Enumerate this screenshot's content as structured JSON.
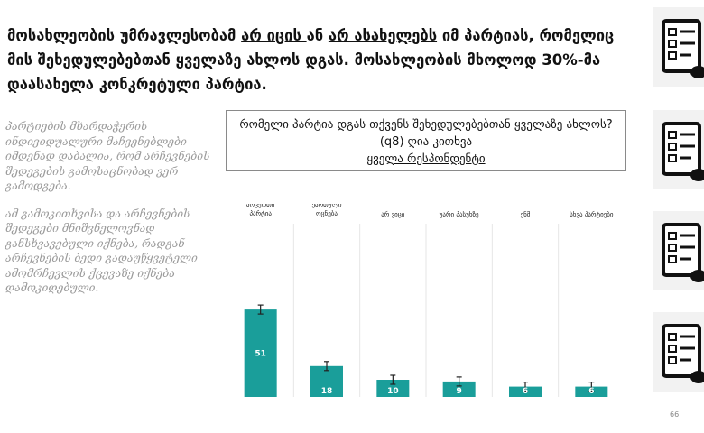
{
  "headline": {
    "part1": "მოსახლეობის უმრავლესობამ ",
    "u1": "არ იცის ",
    "part2": "ან ",
    "u2": "არ ასახელებს",
    "part3": " იმ პარტიას, რომელიც მის შეხედულებებთან ყველაზე ახლოს დგას. მოსახლეობის მხოლოდ ",
    "pct": "30%",
    "part4": "-მა დაასახელა კონკრეტული პარტია."
  },
  "side_note": {
    "p1": "პარტიების მხარდაჭერის ინდივიდუალური მაჩვენებლები იმდენად დაბალია, რომ არჩევნების შედეგების გამოსაცნობად ვერ გამოდგება.",
    "p2": "ამ გამოკითხვისა და არჩევნების შედეგები მნიშვნელოვნად განსხვავებული იქნება, რადგან არჩევნების ბედი გადაუწყვეტელი ამომრჩევლის ქცევაზე იქნება დამოკიდებული."
  },
  "chart_data": {
    "type": "bar",
    "title": "რომელი პარტია დგას თქვენს შეხედულებებთან ყველაზე ახლოს? (q8) ღია კითხვა",
    "subtitle": "ყველა რესპონდენტი",
    "categories": [
      "არცერთი პარტია",
      "ქართული ოცნება",
      "არ ვიცი",
      "უარი პასუხზე",
      "ენმ",
      "სხვა პარტიები"
    ],
    "values": [
      51,
      18,
      10,
      9,
      6,
      6
    ],
    "error_bars": true,
    "grid": false,
    "bar_color": "#1a9e9a",
    "ylim": [
      0,
      100
    ]
  },
  "page_number": "66",
  "icons": [
    "checklist-icon",
    "checklist-icon",
    "checklist-icon",
    "checklist-icon"
  ]
}
